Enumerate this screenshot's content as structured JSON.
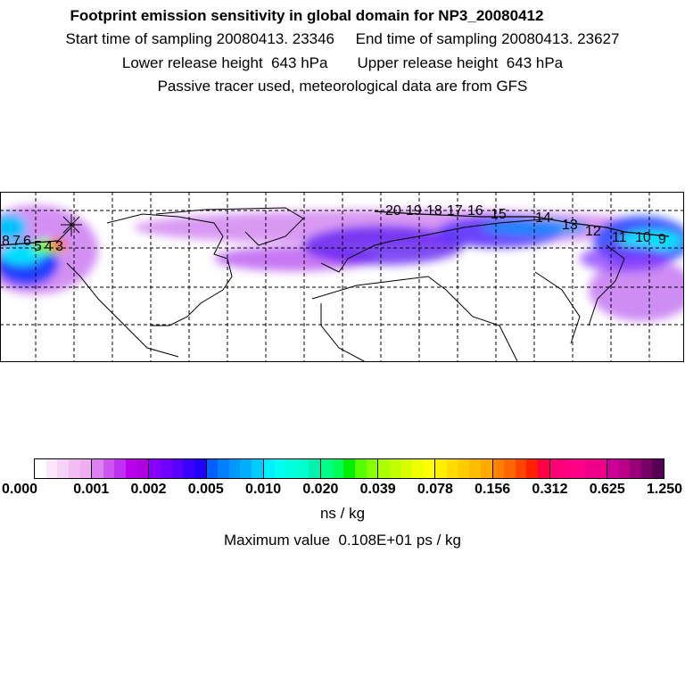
{
  "header": {
    "title": "Footprint emission sensitivity in global domain for NP3_20080412",
    "line2": "Start time of sampling 20080413. 23346     End time of sampling 20080413. 23627",
    "line3": "Lower release height  643 hPa       Upper release height  643 hPa",
    "line4": "Passive tracer used, meteorological data are from GFS"
  },
  "map": {
    "trajectory_labels": [
      "8",
      "7",
      "6",
      "5",
      "4",
      "3",
      "20",
      "19",
      "18",
      "17",
      "16",
      "15",
      "14",
      "13",
      "12",
      "11",
      "10",
      "9"
    ]
  },
  "chart_data": {
    "type": "heatmap",
    "title": "Footprint emission sensitivity in global domain for NP3_20080412",
    "colorbar": {
      "tick_labels": [
        "0.000",
        "0.001",
        "0.002",
        "0.005",
        "0.010",
        "0.020",
        "0.039",
        "0.078",
        "0.156",
        "0.312",
        "0.625",
        "1.250"
      ],
      "units": "ns / kg",
      "segment_colors": [
        [
          "#ffffff",
          "#fbe6fb",
          "#f6d2f6",
          "#f2bef2",
          "#eeaef0"
        ],
        [
          "#dd80f0",
          "#cc55ee",
          "#c030f0",
          "#bb00ee",
          "#b000dd"
        ],
        [
          "#8800ff",
          "#7000ff",
          "#5a00ff",
          "#3c00ff",
          "#2200ff"
        ],
        [
          "#0060ff",
          "#0080ff",
          "#0098ff",
          "#00b0ff",
          "#00ccff"
        ],
        [
          "#00f0ff",
          "#00ffee",
          "#00ffdd",
          "#00ffcc",
          "#00f0b0"
        ],
        [
          "#00ff88",
          "#00ff55",
          "#00ee00",
          "#55ff00",
          "#88ff00"
        ],
        [
          "#aaff00",
          "#c0ff00",
          "#d8ff00",
          "#eeff00",
          "#ffff00"
        ],
        [
          "#ffee00",
          "#ffdd00",
          "#ffcc00",
          "#ffbb00",
          "#ffaa00"
        ],
        [
          "#ff8000",
          "#ff6600",
          "#ff4400",
          "#ff2000",
          "#ff0044"
        ],
        [
          "#ff0077",
          "#ff0080",
          "#ff0088",
          "#f00088",
          "#ee0088"
        ],
        [
          "#cc0099",
          "#bb0088",
          "#990077",
          "#770066",
          "#550055"
        ]
      ]
    },
    "max_value_text": "Maximum value  0.108E+01 ps / kg"
  }
}
